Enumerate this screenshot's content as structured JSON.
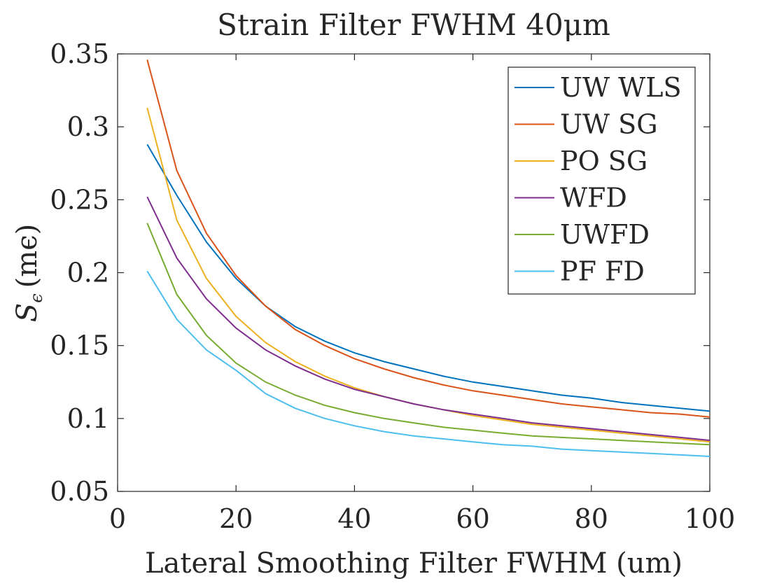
{
  "chart_data": {
    "type": "line",
    "title": "Strain Filter FWHM 40μm",
    "xlabel": "Lateral Smoothing Filter FWHM (um)",
    "ylabel": "Sϵ (mϵ)",
    "ylabel_main": "S",
    "ylabel_sub": "ϵ",
    "ylabel_unit": "(mϵ)",
    "xlim": [
      0,
      100
    ],
    "ylim": [
      0.05,
      0.35
    ],
    "xticks": [
      "0",
      "20",
      "40",
      "60",
      "80",
      "100"
    ],
    "yticks": [
      "0.05",
      "0.1",
      "0.15",
      "0.2",
      "0.25",
      "0.3",
      "0.35"
    ],
    "grid": false,
    "legend_position": "top-right",
    "x": [
      5,
      10,
      15,
      20,
      25,
      30,
      35,
      40,
      45,
      50,
      55,
      60,
      65,
      70,
      75,
      80,
      85,
      90,
      95,
      100
    ],
    "series": [
      {
        "name": "UW WLS",
        "color": "#0072BD",
        "values": [
          0.288,
          0.253,
          0.221,
          0.196,
          0.177,
          0.163,
          0.153,
          0.145,
          0.139,
          0.134,
          0.129,
          0.125,
          0.122,
          0.119,
          0.116,
          0.114,
          0.111,
          0.109,
          0.107,
          0.105
        ]
      },
      {
        "name": "UW SG",
        "color": "#D95319",
        "values": [
          0.346,
          0.27,
          0.227,
          0.198,
          0.177,
          0.161,
          0.15,
          0.141,
          0.134,
          0.128,
          0.123,
          0.119,
          0.116,
          0.113,
          0.11,
          0.108,
          0.106,
          0.104,
          0.103,
          0.101
        ]
      },
      {
        "name": "PO SG",
        "color": "#EDB120",
        "values": [
          0.313,
          0.236,
          0.196,
          0.17,
          0.152,
          0.139,
          0.129,
          0.121,
          0.115,
          0.11,
          0.106,
          0.102,
          0.099,
          0.096,
          0.094,
          0.092,
          0.09,
          0.088,
          0.086,
          0.084
        ]
      },
      {
        "name": "WFD",
        "color": "#7E2F8E",
        "values": [
          0.252,
          0.21,
          0.182,
          0.162,
          0.147,
          0.136,
          0.127,
          0.12,
          0.115,
          0.11,
          0.106,
          0.103,
          0.1,
          0.097,
          0.095,
          0.093,
          0.091,
          0.089,
          0.087,
          0.085
        ]
      },
      {
        "name": "UWFD",
        "color": "#77AC30",
        "values": [
          0.234,
          0.185,
          0.157,
          0.138,
          0.125,
          0.116,
          0.109,
          0.104,
          0.1,
          0.097,
          0.094,
          0.092,
          0.09,
          0.088,
          0.087,
          0.086,
          0.085,
          0.084,
          0.083,
          0.082
        ]
      },
      {
        "name": "PF FD",
        "color": "#4DBEEE",
        "values": [
          0.201,
          0.168,
          0.147,
          0.133,
          0.117,
          0.107,
          0.1,
          0.095,
          0.091,
          0.088,
          0.086,
          0.084,
          0.082,
          0.081,
          0.079,
          0.078,
          0.077,
          0.076,
          0.075,
          0.074
        ]
      }
    ]
  }
}
